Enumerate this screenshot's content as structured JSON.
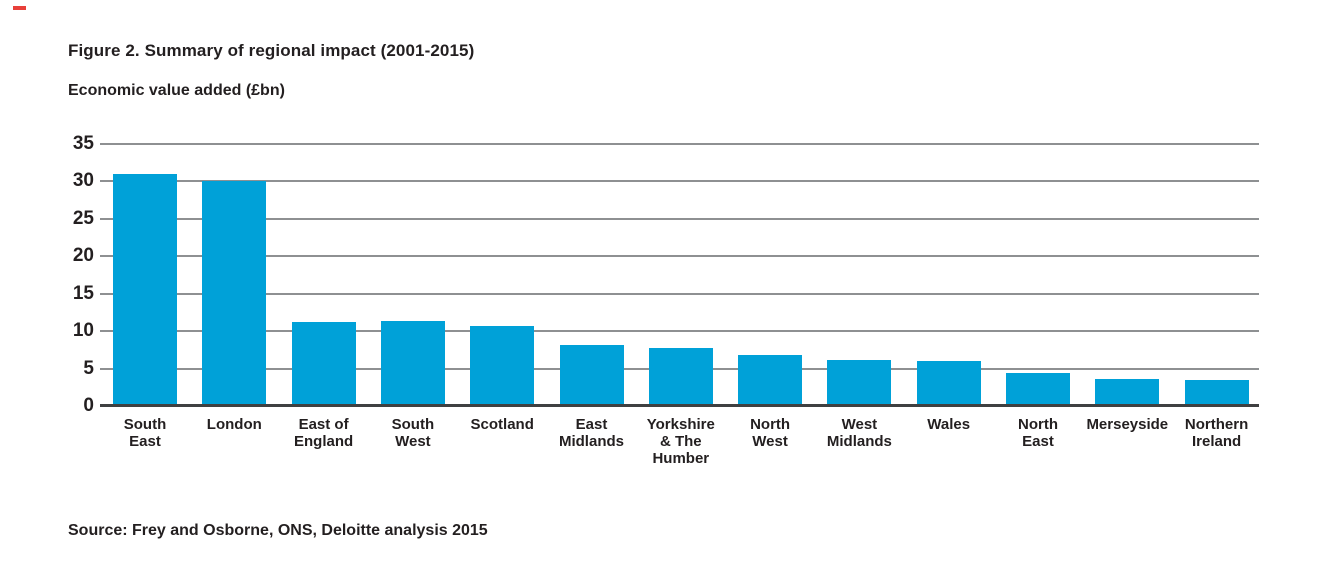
{
  "page": {
    "background_color": "#ffffff",
    "corner_mark_color": "#e8403a",
    "text_color": "#231f20"
  },
  "figure": {
    "title": "Figure 2. Summary of regional impact (2001-2015)",
    "subtitle": "Economic value added (£bn)",
    "source": "Source: Frey and Osborne, ONS, Deloitte analysis 2015"
  },
  "chart_data": {
    "type": "bar",
    "title": "Figure 2. Summary of regional impact (2001-2015)",
    "ylabel": "Economic value added (£bn)",
    "xlabel": "",
    "categories": [
      "South East",
      "London",
      "East of England",
      "South West",
      "Scotland",
      "East Midlands",
      "Yorkshire & The Humber",
      "North West",
      "West Midlands",
      "Wales",
      "North East",
      "Merseyside",
      "Northern Ireland"
    ],
    "category_tick_labels": [
      "South\nEast",
      "London",
      "East of\nEngland",
      "South\nWest",
      "Scotland",
      "East\nMidlands",
      "Yorkshire\n& The\nHumber",
      "North\nWest",
      "West\nMidlands",
      "Wales",
      "North\nEast",
      "Merseyside",
      "Northern\nIreland"
    ],
    "values": [
      31.0,
      30.1,
      11.2,
      11.3,
      10.7,
      8.2,
      7.7,
      6.8,
      6.1,
      6.0,
      4.4,
      3.6,
      3.5
    ],
    "ylim": [
      0,
      35
    ],
    "yticks": [
      0,
      5,
      10,
      15,
      20,
      25,
      30,
      35
    ],
    "grid": true,
    "gridline_color": "#8e9092",
    "axis_color": "#3f4041",
    "bar_color": "#00a1d8",
    "legend_position": "none"
  }
}
